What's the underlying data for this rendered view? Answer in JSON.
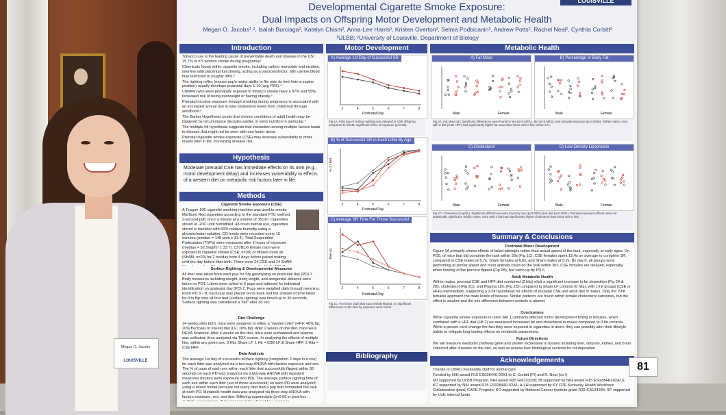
{
  "poster": {
    "title": "Developmental Cigarette Smoke Exposure:",
    "subtitle": "Dual Impacts on Offspring Motor Development and Metabolic Health",
    "authors": "Megan O. Jacobs¹˒², Isaiah Burciaga², Katelyn Chism², Anna-Lee Harris², Kristen Overton², Selma Podbicanin², Andrew Potts², Rachel Neal², Cynthia Corbitt²",
    "affiliations": "¹ULBB; ²University of Louisville, Department of Biology",
    "logo": "LOUISVILLE",
    "number": "81",
    "sections": {
      "introduction": {
        "heading": "Introduction",
        "bullets": [
          "Tobacco use is the leading cause of preventable death and disease in the US¹; 15.7% of KY women smoke during pregnancy²",
          "Chemicals found within cigarette smoke, including carbon monoxide and nicotine, interfere with placental functioning, acting as a vasoconstrictor, with uterine blood flow restricted to roughly 38%.³",
          "The righting reflex (mouse pup's motor ability to flip onto its feet from a supine position) usually develops postnatal days 1-10 (avg PD5).⁴",
          "Children who were prenatally exposed to tobacco smoke have a 37% and 55% increased risk of being overweight or having obesity.⁵",
          "Prenatal nicotine exposure through smoking during pregnancy is associated with an increased annual rise in total cholesterol levels from childhood through adulthood.⁶",
          "The Barker Hypothesis posits that chronic conditions of adult health may be triggered by circumstance decades earlier, in utero nutrition in particular.⁷",
          "The multiple-hit hypothesis suggests that interaction among multiple factors leads to disease that might not be seen with one factor alone.",
          "Prenatal cigarette smoke exposure (CSE) may increase vulnerability to other insults later in life, increasing disease risk."
        ]
      },
      "hypothesis": {
        "heading": "Hypothesis",
        "text": "Moderate prenatal CSE has immediate effects on its own (e.g., motor development delay) and increases vulnerability to effects of a western diet on metabolic risk factors later in life."
      },
      "methods": {
        "heading": "Methods",
        "sub1": "Cigarette Smoke Exposure (CSE)",
        "text1": "A Teague-10E cigarette smoking machine was used to smoke Marlboro Red cigarettes according to the standard FTC method. 2-second puff, once a minute at a volume of 35cm³. Cigarettes stored at -20C until humidified. 48 hours before use, cigarettes stored in humidor with 60% relative humidity using a glycerin/water solution. CO levels were recorded every 15 minutes (median = 148 ppm ± 31.4). Total Suspended Particulates (TSPs) were measured after 2 hours of exposure (median = 52.5mg/m³ ± 33.7). C57BL/6 female mice were exposed to cigarette smoke (CSE; n=30) or filtered room air (ShAM; n=20) for 2 hrs/day from 4 days before paired mating until the day before litter birth. There were 24 CSE and 14 ShAM litters born alive. All animal use approved by the UofL IACUC. Urine samples taken from all mice were collected at GD15 and frozen for later quantification of cotinine with an Abnova measure.",
        "sub2": "Surface Righting & Developmental Measures",
        "text2": "All litter was taken from each pup for Sry genotyping on postnatal day (PD) 1. Body measures including weight, body length, and anogenital distance were taken on PD1. Litters were culled to 6 pups and tattooed for individual identification on postnatal day (PD) 2. Pups were weighed daily through weaning. From PD 3 – 8, each pup was placed on its back and the amount of time taken for it to flip onto all four feet (surface righting) was timed up to 30 seconds. Surface righting was considered a \"fail\" after 30 sec.",
        "sub3": "Diet Challenge",
        "text3": "14 weeks after birth, mice were assigned to either a \"western diet\" (HFF; 40% fat, 20% fructose) or low-fat diet (LF; 10% fat). After 2 weeks on the diet, mice were DEXA Scanned. After 4 weeks on the diet, mice were euthanized and plasma was collected, then analyzed via TDX screen. In analyzing the effects of multiple hits, within any given sex, 0 Hits Sham LF, 1 Hit = CSE LF & Sham HFF, 2 Hits = CSE HFF.",
        "sub4": "Data Analysis",
        "text4": "The average 1st day of successful surface righting (completion 2 days in a row) for each litter was analyzed via a two-way ANOVA with factors exposure and sex. The % of pups of each sex within each litter that successfully flipped within 30 seconds on each PD was analyzed via a two-way ANOVA with repeated measures (factors were exposure and PD). The average surface righting time of each sex within each litter (out of those successful) on each PD were analyzed using a mixed model because not every litter had a pup that completed the task at each PD. Metabolic health data was analyzed via three-way ANOVA with factors exposure, sex, and diet. Differing superscripts (p<0.05 in post-hoc multiple comparisons. Tukey test used for all post hoc analyses."
      },
      "motor": {
        "heading": "Motor Development",
        "panelA": "A) Average 1st Day of Successful SR",
        "panelB": "B) % of Successful SR in Each Litter By Age",
        "panelC": "C) Average SR Time For Those Successful",
        "xlabel": "Postnatal Day",
        "captionA": "Fig 1A: First day of surface righting was delayed in CSE offspring compared to ShAM; significant effect of exposure (p<0.05).",
        "captionC": "Fig 1C: For those pups that successfully flipped, no significant differences in SR time by exposure were found."
      },
      "metabolic": {
        "heading": "Metabolic Health",
        "panelA": "A) Fat Mass",
        "panelB": "B) Percentage of Body Fat",
        "panelC": "C) Cholesterol",
        "panelD": "D) Low-Density Lipoprotein",
        "male": "Male",
        "female": "Female",
        "captionAB": "Fig 2A: Fat Mass (g); Significant differences were found by sex (p<0.0001), diet (p<0.0001), and prenatal exposure (p=0.0066). Within males, mice with 2 hits (CSE HFF) had significantly higher fat mass than those with 0 hits (Sham LF).",
        "captionCD": "Fig 2C: Cholesterol (mg/dL); Significant differences were found by sex (p<0.0001) and diet (p<0.0001). Prenatal exposure effects were not statistically significant. Within males, mice with 2 hits had significantly higher cholesterol than those with 0 hits."
      },
      "summary": {
        "heading": "Summary & Conclusions",
        "sub1": "Postnatal Motor Development",
        "text1": "Figure 1A primarily shows effects of failed attempts rather than actual speed of the task, especially at early ages. On PD5, of mice that did complete the task within 30s (Fig 1C), CSE females spent 12.4s on average to complete SR, compared to CSE males at 6.7s. Sham females at 6.0s, and Sham males at 5.2s. By day 6, all groups were performing at similar speed and most animals could do the task within 30s. CSE females are delayed, especially when looking at the percent flipped (Fig 1B), but catch up by PD 6.",
        "sub2": "Adult Metabolic Health",
        "text2": "Within males, prenatal CSE and HFF diet combined (2 hits) elicit a significant increase in fat deposition (Fig 2A & 2B), cholesterol (Fig 2C), and Plasma LDL (Fig 2D) compared to Sham LF controls (0 hits), with 1-hit groups (CSE or HFF) intermediate, supporting a 2-hit hypothesis for effects of prenatal CSE and adult diet in males. Only the 2-hit females approach the male levels of fatness. Similar patterns are found within female cholesterol outcomes, but the effect is weaker and the sex difference between controls is absent.",
        "sub3": "Conclusions",
        "text3": "While cigarette smoke exposure in utero (Hit 1) primarily affected motor development timing in females, when combined with a HFF diet (Hit 2) we measured increased fat and cholesterol in males compared to 0-hit controls. While a person can't change the fact they were exposed to cigarettes in utero, they can possibly alter their lifestyle habits to mitigate long-lasting effects on metabolic parameters.",
        "sub4": "Future Directions",
        "text4": "We will measure metabolic pathway gene and protein expression in tissues including liver, adipose, kidney, and brain collected after 4 weeks on the diet, as well as assess liver histological sections for fat deposition."
      },
      "bibliography": {
        "heading": "Bibliography"
      },
      "acknowledgements": {
        "heading": "Acknowledgements",
        "lines": [
          "Thanks to CMRU husbandry staff for animal care",
          "Funded by NIH award R15 ES028440-02A1 to C. Corbitt (PI) and R. Neal (co-I)",
          "MJ supported by ULBB Program, NIH award R25 GM133328; IB supported by NIH award R15 ES028440-02A1S; KC supported by NIH award R15 ES028440-02A1; A-LH supported by KY CPE Kentucky Health Workforce Collaborative grant, CARE Program; KO supported by National Cancer Institute grant R25-CA134283; SP supported by UofL internal funds."
        ]
      }
    }
  },
  "badge": {
    "name": "Megan O. Jacobs",
    "univ": "LOUISVILLE"
  },
  "colors": {
    "section_header": "#3d4f9a",
    "title": "#2b3f7a",
    "sham": "#444444",
    "cse": "#c0392b"
  },
  "chart_data": [
    {
      "type": "line",
      "title": "A) Average 1st Day of Successful SR",
      "xlabel": "Postnatal Day",
      "x": [
        3,
        4,
        5,
        6,
        7,
        8
      ],
      "series": [
        {
          "values": [
            10,
            9,
            8,
            6,
            5,
            4
          ]
        },
        {
          "values": [
            12,
            11,
            9,
            7,
            6,
            5
          ]
        }
      ]
    },
    {
      "type": "line",
      "title": "B) % of Successful SR in Each Litter By Age",
      "xlabel": "Postnatal Day",
      "ylabel": "% of Litter",
      "x": [
        3,
        4,
        5,
        6,
        7,
        8
      ],
      "ylim": [
        0,
        100
      ],
      "series": [
        {
          "values": [
            25,
            22,
            55,
            72,
            95,
            100
          ]
        },
        {
          "values": [
            20,
            18,
            40,
            80,
            92,
            98
          ]
        },
        {
          "values": [
            28,
            35,
            60,
            85,
            98,
            100
          ]
        },
        {
          "values": [
            15,
            20,
            30,
            65,
            90,
            97
          ]
        }
      ]
    },
    {
      "type": "line",
      "title": "C) Average SR Time For Those Successful",
      "xlabel": "Postnatal Day",
      "ylabel": "Time (s)",
      "x": [
        3,
        4,
        5,
        6,
        7,
        8
      ],
      "series": [
        {
          "values": [
            9,
            12,
            6,
            4,
            3,
            2
          ]
        },
        {
          "values": [
            14,
            11,
            12,
            5,
            3,
            2
          ]
        },
        {
          "values": [
            8,
            7,
            5,
            4,
            3,
            2
          ]
        },
        {
          "values": [
            10,
            9,
            7,
            5,
            3,
            2
          ]
        }
      ]
    }
  ]
}
